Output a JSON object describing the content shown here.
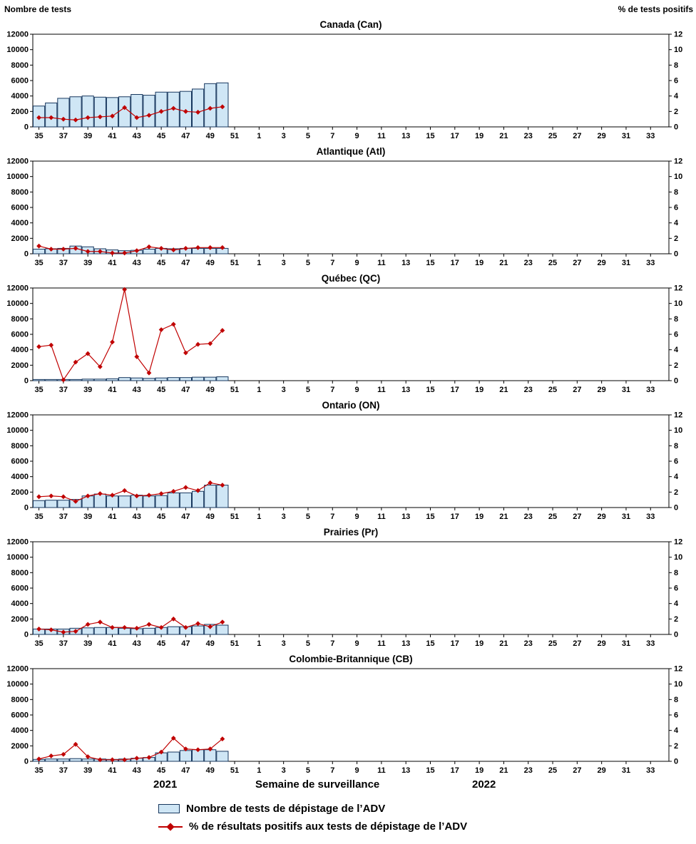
{
  "page": {
    "left_axis_title": "Nombre de tests",
    "right_axis_title": "% de tests positifs",
    "x_axis_title": "Semaine de surveillance",
    "year_left": "2021",
    "year_right": "2022",
    "legend": [
      {
        "type": "bar",
        "label": "Nombre de tests de dépistage de l’ADV"
      },
      {
        "type": "line",
        "label": "% de résultats positifs aux tests de dépistage de l’ADV"
      }
    ]
  },
  "axes": {
    "left_max": 12000,
    "right_max": 12,
    "left_ticks": [
      0,
      2000,
      4000,
      6000,
      8000,
      10000,
      12000
    ],
    "right_ticks": [
      0,
      2,
      4,
      6,
      8,
      10,
      12
    ],
    "x_tick_labels": [
      35,
      37,
      39,
      41,
      43,
      45,
      47,
      49,
      51,
      1,
      3,
      5,
      7,
      9,
      11,
      13,
      15,
      17,
      19,
      21,
      23,
      25,
      27,
      29,
      31,
      33
    ],
    "weeks_2021": 18,
    "weeks_2022": 34
  },
  "colors": {
    "bar_fill": "#cfe6f5",
    "bar_stroke": "#17375e",
    "line": "#c00000"
  },
  "chart_data": [
    {
      "type": "bar+line",
      "title": "Canada (Can)",
      "xlabel": "Semaine de surveillance",
      "ylabel_left": "Nombre de tests",
      "ylabel_right": "% de tests positifs",
      "weeks": [
        35,
        36,
        37,
        38,
        39,
        40,
        41,
        42,
        43,
        44,
        45,
        46,
        47,
        48,
        49,
        50
      ],
      "tests": [
        2700,
        3100,
        3700,
        3900,
        4000,
        3850,
        3800,
        3900,
        4200,
        4100,
        4500,
        4500,
        4600,
        4900,
        5600,
        5700
      ],
      "pct_positive": [
        1.2,
        1.2,
        1.0,
        0.9,
        1.2,
        1.3,
        1.4,
        2.5,
        1.2,
        1.5,
        2.0,
        2.4,
        2.0,
        1.9,
        2.4,
        2.6
      ]
    },
    {
      "type": "bar+line",
      "title": "Atlantique (Atl)",
      "weeks": [
        35,
        36,
        37,
        38,
        39,
        40,
        41,
        42,
        43,
        44,
        45,
        46,
        47,
        48,
        49,
        50
      ],
      "tests": [
        600,
        650,
        700,
        1000,
        900,
        650,
        500,
        400,
        450,
        600,
        700,
        650,
        700,
        700,
        700,
        700
      ],
      "pct_positive": [
        1.0,
        0.6,
        0.6,
        0.7,
        0.3,
        0.3,
        0.1,
        0.1,
        0.4,
        0.9,
        0.7,
        0.5,
        0.7,
        0.8,
        0.8,
        0.8
      ]
    },
    {
      "type": "bar+line",
      "title": "Québec (QC)",
      "weeks": [
        35,
        36,
        37,
        38,
        39,
        40,
        41,
        42,
        43,
        44,
        45,
        46,
        47,
        48,
        49,
        50
      ],
      "tests": [
        150,
        150,
        150,
        150,
        200,
        200,
        250,
        400,
        350,
        300,
        350,
        400,
        400,
        450,
        450,
        500
      ],
      "pct_positive": [
        4.4,
        4.6,
        0.1,
        2.4,
        3.5,
        1.8,
        5.0,
        11.8,
        3.1,
        1.0,
        6.6,
        7.3,
        3.6,
        4.7,
        4.8,
        6.5
      ]
    },
    {
      "type": "bar+line",
      "title": "Ontario (ON)",
      "weeks": [
        35,
        36,
        37,
        38,
        39,
        40,
        41,
        42,
        43,
        44,
        45,
        46,
        47,
        48,
        49,
        50
      ],
      "tests": [
        900,
        950,
        950,
        1050,
        1500,
        1750,
        1500,
        1500,
        1600,
        1500,
        1550,
        1900,
        1900,
        2100,
        2900,
        2900
      ],
      "pct_positive": [
        1.4,
        1.5,
        1.4,
        0.8,
        1.5,
        1.8,
        1.6,
        2.2,
        1.5,
        1.6,
        1.8,
        2.1,
        2.6,
        2.2,
        3.2,
        2.9
      ]
    },
    {
      "type": "bar+line",
      "title": "Prairies (Pr)",
      "weeks": [
        35,
        36,
        37,
        38,
        39,
        40,
        41,
        42,
        43,
        44,
        45,
        46,
        47,
        48,
        49,
        50
      ],
      "tests": [
        700,
        700,
        700,
        800,
        850,
        900,
        900,
        800,
        750,
        800,
        900,
        1000,
        1000,
        1100,
        1300,
        1200
      ],
      "pct_positive": [
        0.7,
        0.6,
        0.3,
        0.4,
        1.3,
        1.6,
        0.9,
        0.9,
        0.8,
        1.3,
        0.9,
        2.0,
        0.9,
        1.4,
        1.0,
        1.6
      ]
    },
    {
      "type": "bar+line",
      "title": "Colombie-Britannique (CB)",
      "weeks": [
        35,
        36,
        37,
        38,
        39,
        40,
        41,
        42,
        43,
        44,
        45,
        46,
        47,
        48,
        49,
        50
      ],
      "tests": [
        250,
        300,
        300,
        350,
        300,
        300,
        250,
        300,
        400,
        500,
        1100,
        1200,
        1400,
        1500,
        1500,
        1300
      ],
      "pct_positive": [
        0.3,
        0.7,
        0.9,
        2.2,
        0.6,
        0.2,
        0.2,
        0.2,
        0.4,
        0.5,
        1.2,
        3.0,
        1.6,
        1.5,
        1.6,
        2.9
      ]
    }
  ]
}
